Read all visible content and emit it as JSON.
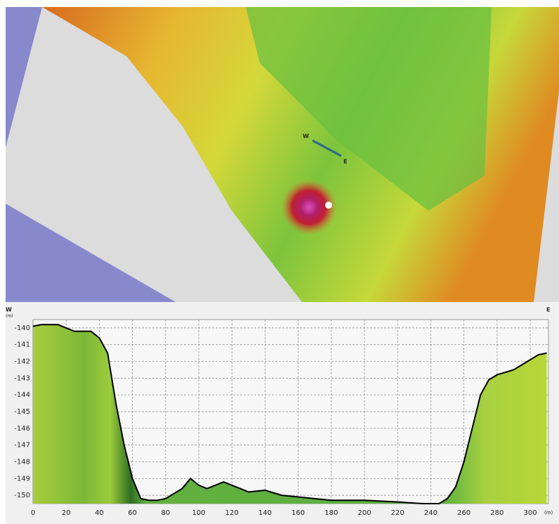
{
  "map": {
    "west_label": "W",
    "east_label": "E"
  },
  "chart_data": {
    "type": "line",
    "left_label": "W",
    "right_label": "E",
    "y_unit": "(m)",
    "x_unit": "(m)",
    "x": [
      0,
      5,
      15,
      20,
      25,
      35,
      40,
      45,
      50,
      55,
      60,
      65,
      70,
      75,
      80,
      90,
      95,
      100,
      105,
      115,
      120,
      130,
      140,
      150,
      160,
      170,
      180,
      200,
      220,
      235,
      245,
      250,
      255,
      260,
      265,
      270,
      275,
      280,
      290,
      300,
      305,
      310
    ],
    "values": [
      -139.9,
      -139.8,
      -139.8,
      -140.0,
      -140.2,
      -140.2,
      -140.6,
      -141.5,
      -144.5,
      -147,
      -149,
      -150.2,
      -150.3,
      -150.3,
      -150.2,
      -149.6,
      -149.0,
      -149.4,
      -149.6,
      -149.2,
      -149.4,
      -149.8,
      -149.7,
      -150.0,
      -150.1,
      -150.2,
      -150.3,
      -150.3,
      -150.4,
      -150.5,
      -150.5,
      -150.2,
      -149.5,
      -148,
      -146,
      -144,
      -143.1,
      -142.8,
      -142.5,
      -141.9,
      -141.6,
      -141.5
    ],
    "line_color": "#000000",
    "xlim": [
      0,
      311
    ],
    "ylim": [
      -150.5,
      -139.5
    ],
    "xticks": [
      0,
      20,
      40,
      60,
      80,
      100,
      120,
      140,
      160,
      180,
      200,
      220,
      240,
      260,
      280,
      300
    ],
    "yticks": [
      -140,
      -141,
      -142,
      -143,
      -144,
      -145,
      -146,
      -147,
      -148,
      -149,
      -150
    ],
    "grid": true
  }
}
